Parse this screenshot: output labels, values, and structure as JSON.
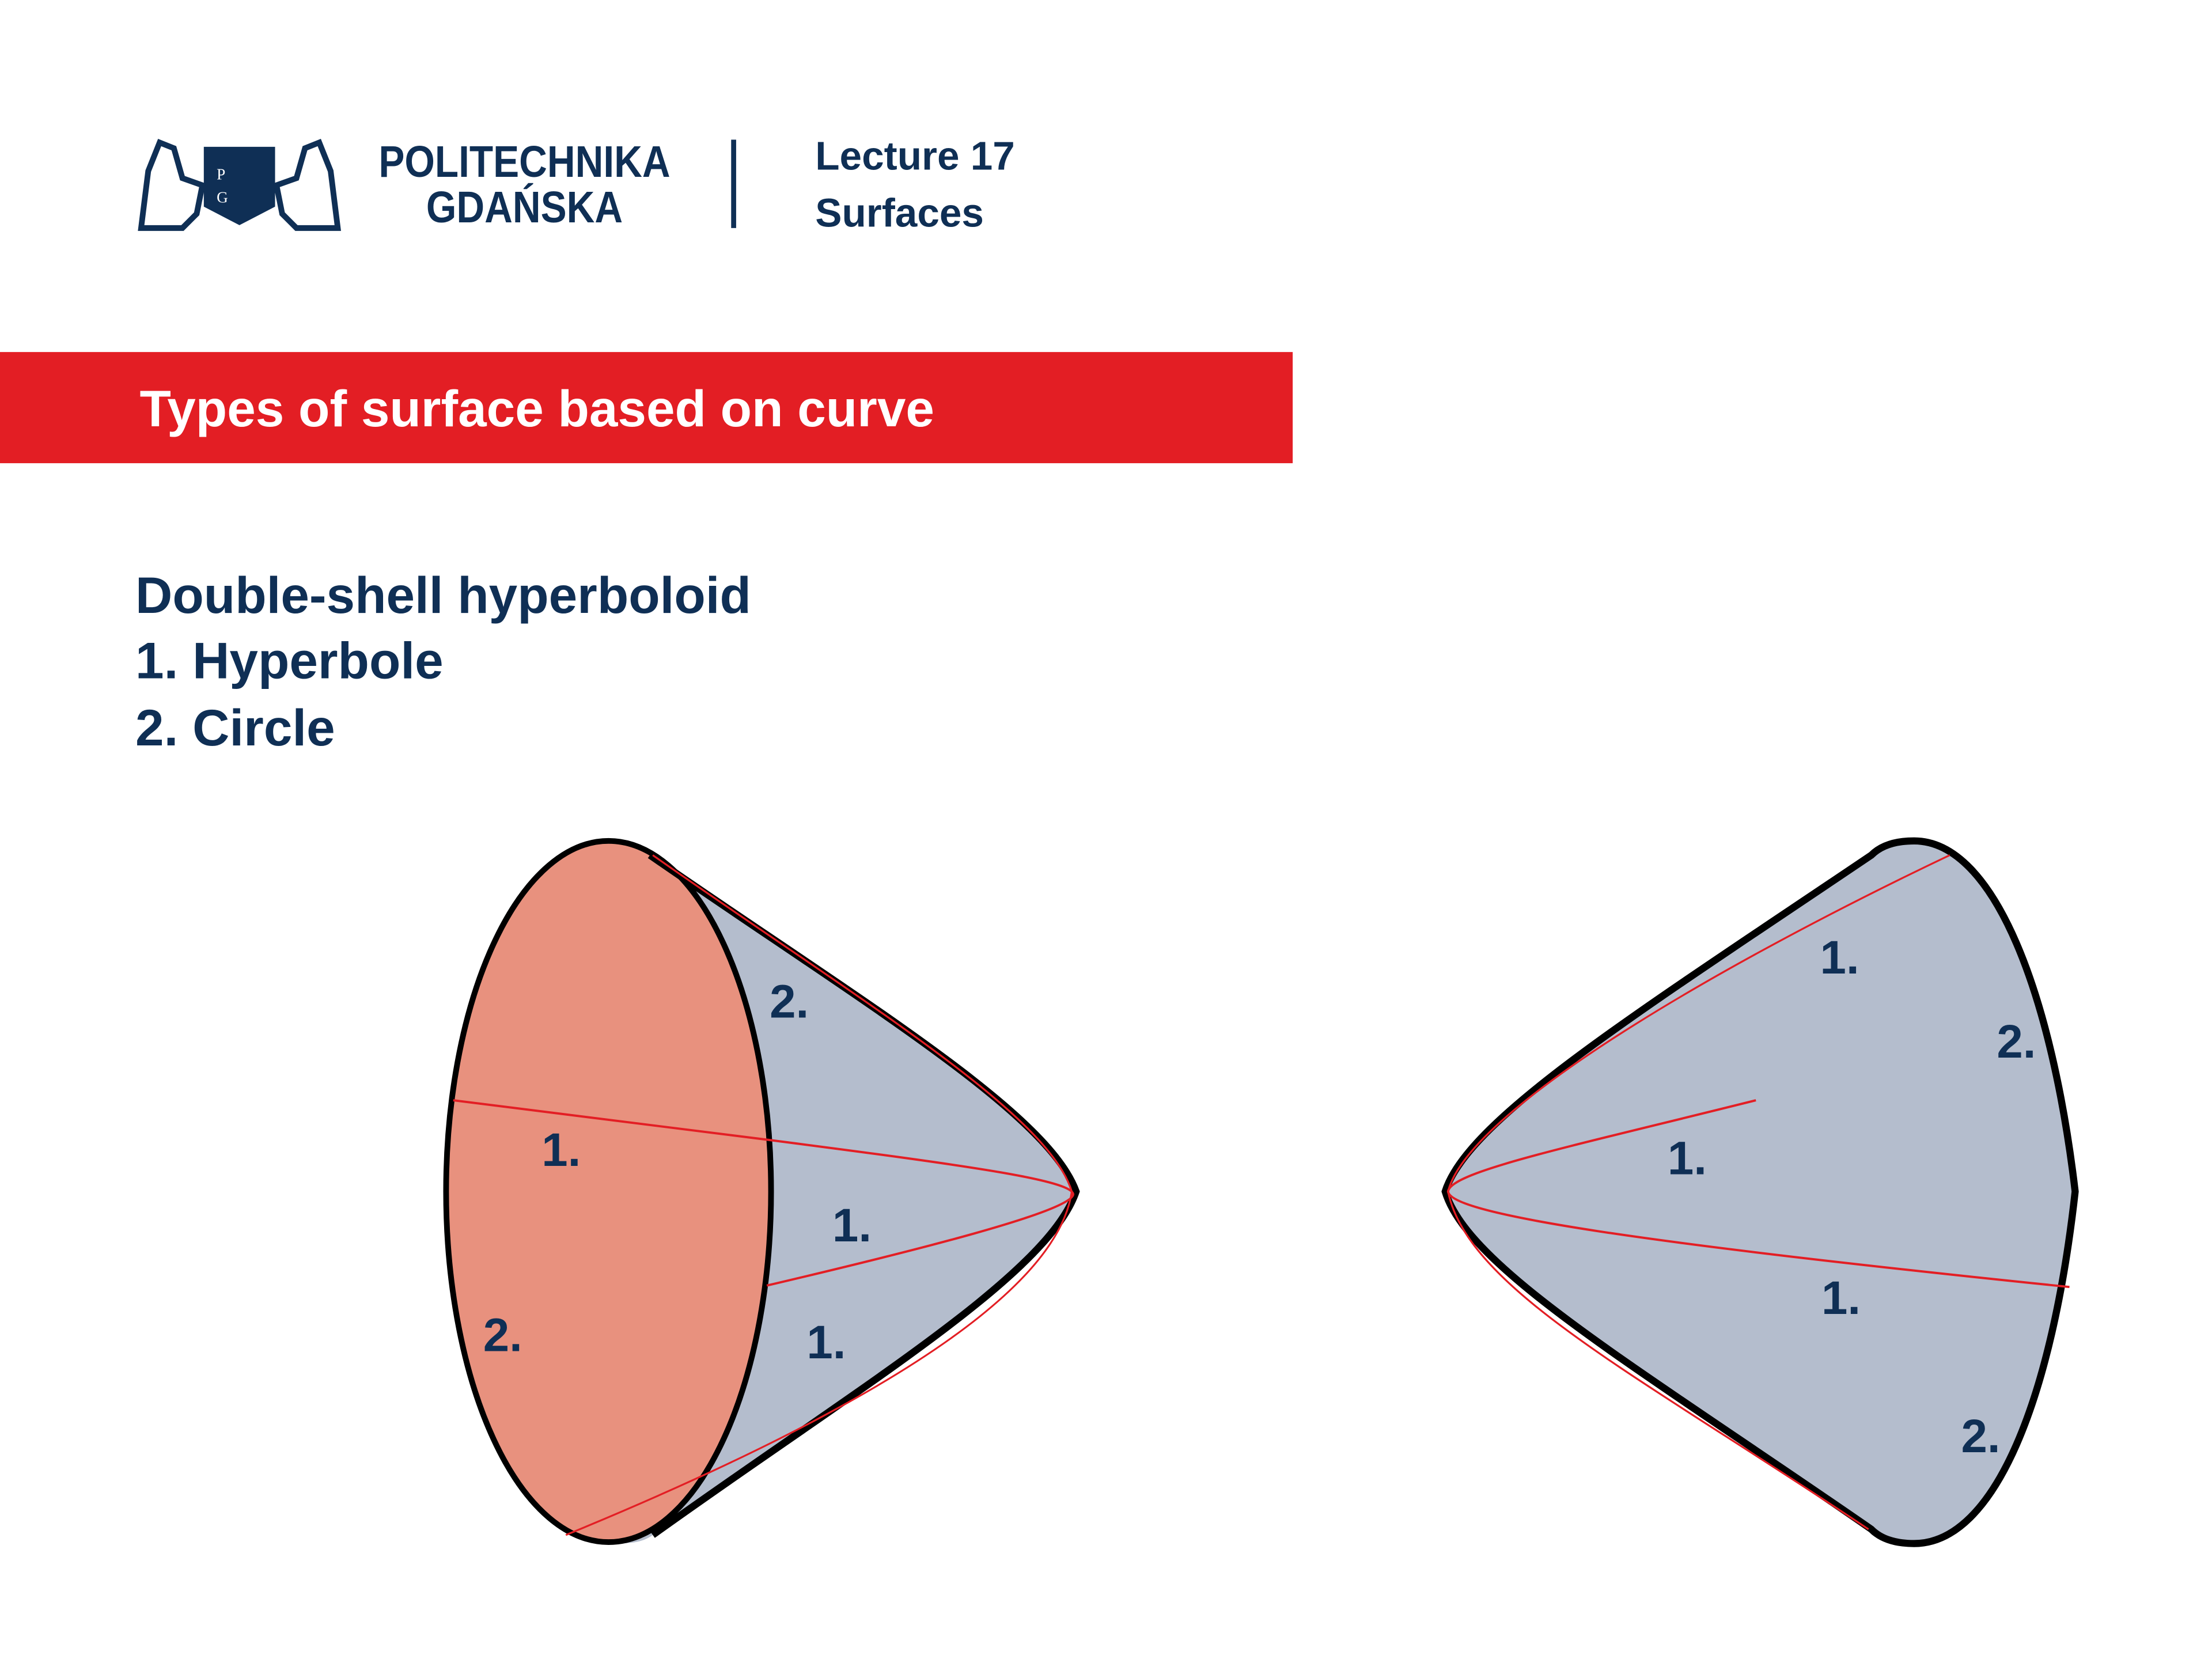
{
  "header": {
    "logo_text": "PG",
    "brand_line1": "POLITECHNIKA",
    "brand_line2": "GDAŃSKA",
    "lecture": "Lecture 17",
    "subject": "Surfaces"
  },
  "banner": {
    "title": "Types of surface based on curve",
    "color": "#e31e24"
  },
  "content": {
    "heading": "Double-shell hyperboloid",
    "items": [
      "1. Hyperbole",
      "2. Circle"
    ]
  },
  "figure": {
    "colors": {
      "surface": "#b4bdcd",
      "section": "#e8917e",
      "curve": "#e31e24",
      "outline": "#000000"
    },
    "left_labels": [
      "2.",
      "1.",
      "1.",
      "2.",
      "1."
    ],
    "right_labels": [
      "1.",
      "2.",
      "1.",
      "1.",
      "2."
    ]
  }
}
